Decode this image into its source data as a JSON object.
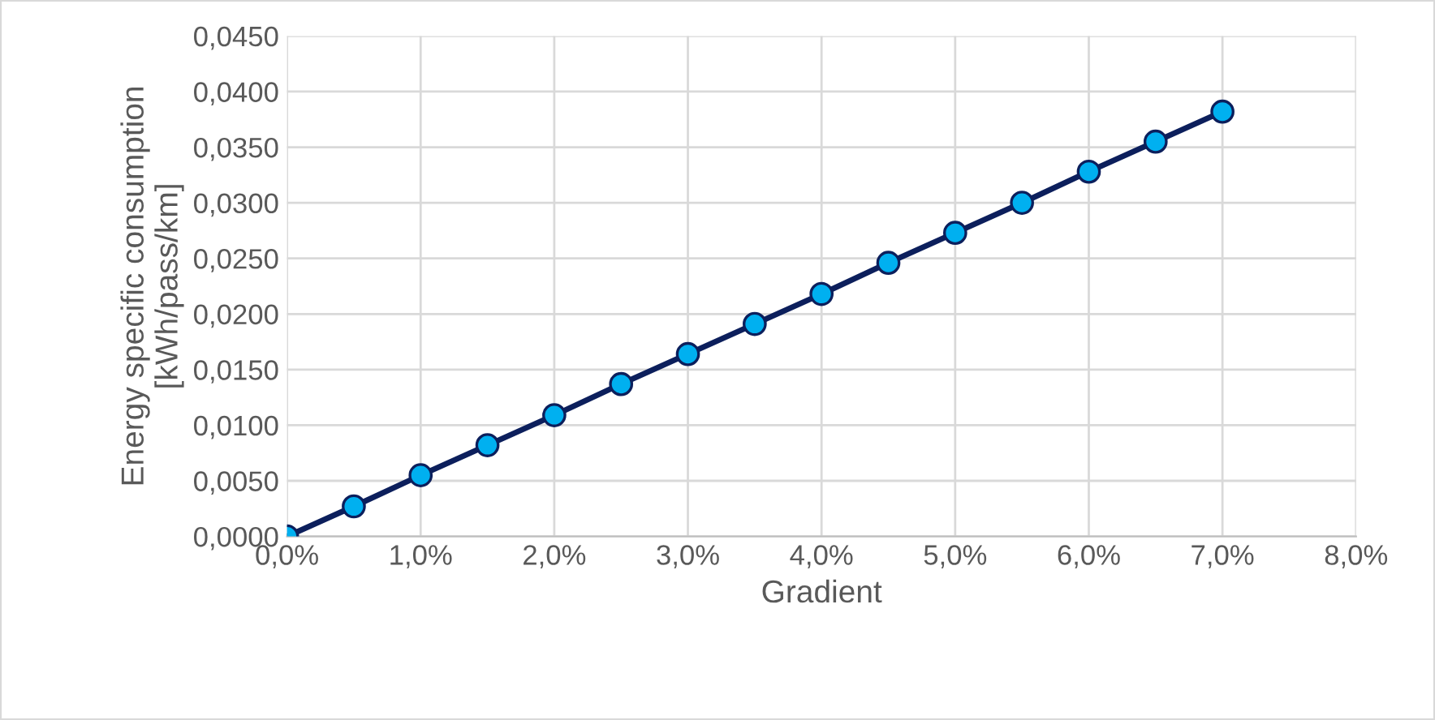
{
  "chart_data": {
    "type": "line",
    "xlabel": "Gradient",
    "ylabel": "Energy specific consumption\n[kWh/pass/km]",
    "x": [
      0,
      0.5,
      1,
      1.5,
      2,
      2.5,
      3,
      3.5,
      4,
      4.5,
      5,
      5.5,
      6,
      6.5,
      7
    ],
    "series": [
      {
        "color": "#0c1f5c",
        "colors": [
          "#00b0f0",
          "#00b0f0",
          "#00b0f0",
          "#00b0f0",
          "#00b0f0",
          "#00b0f0",
          "#00b0f0",
          "#00b0f0",
          "#00b0f0",
          "#00b0f0",
          "#00b0f0",
          "#00b0f0",
          "#00b0f0",
          "#00b0f0",
          "#00b0f0"
        ],
        "values": [
          0,
          0.0027,
          0.0055,
          0.0082,
          0.0109,
          0.0137,
          0.0164,
          0.0191,
          0.0218,
          0.0246,
          0.0273,
          0.03,
          0.0328,
          0.0355,
          0.0382
        ]
      }
    ],
    "xlim": [
      0,
      8
    ],
    "xticks": [
      {
        "value": 0,
        "label": "0,0%"
      },
      {
        "value": 1,
        "label": "1,0%"
      },
      {
        "value": 2,
        "label": "2,0%"
      },
      {
        "value": 3,
        "label": "3,0%"
      },
      {
        "value": 4,
        "label": "4,0%"
      },
      {
        "value": 5,
        "label": "5,0%"
      },
      {
        "value": 6,
        "label": "6,0%"
      },
      {
        "value": 7,
        "label": "7,0%"
      },
      {
        "value": 8,
        "label": "8,0%"
      }
    ],
    "ylim": [
      0,
      0.045
    ],
    "yticks": [
      {
        "value": 0,
        "label": "0,0000"
      },
      {
        "value": 0.005,
        "label": "0,0050"
      },
      {
        "value": 0.01,
        "label": "0,0100"
      },
      {
        "value": 0.015,
        "label": "0,0150"
      },
      {
        "value": 0.02,
        "label": "0,0200"
      },
      {
        "value": 0.025,
        "label": "0,0250"
      },
      {
        "value": 0.03,
        "label": "0,0300"
      },
      {
        "value": 0.035,
        "label": "0,0350"
      },
      {
        "value": 0.04,
        "label": "0,0400"
      },
      {
        "value": 0.045,
        "label": "0,0450"
      }
    ],
    "grid": true,
    "marker": "circle",
    "line_style": "solid"
  }
}
